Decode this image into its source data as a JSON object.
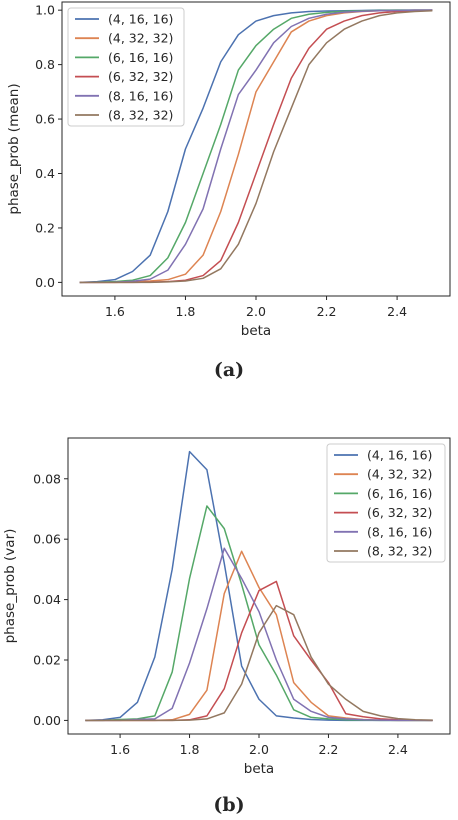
{
  "colors": [
    "#4c72b0",
    "#dd8452",
    "#55a868",
    "#c44e52",
    "#8172b2",
    "#937860"
  ],
  "chart_data": [
    {
      "type": "line",
      "caption": "(a)",
      "xlabel": "beta",
      "ylabel": "phase_prob (mean)",
      "xlim": [
        1.45,
        2.55
      ],
      "ylim": [
        -0.05,
        1.03
      ],
      "xticks": [
        1.6,
        1.8,
        2.0,
        2.2,
        2.4
      ],
      "xtick_labels": [
        "1.6",
        "1.8",
        "2.0",
        "2.2",
        "2.4"
      ],
      "yticks": [
        0.0,
        0.2,
        0.4,
        0.6,
        0.8,
        1.0
      ],
      "ytick_labels": [
        "0.0",
        "0.2",
        "0.4",
        "0.6",
        "0.8",
        "1.0"
      ],
      "legend": "top-left",
      "x": [
        1.5,
        1.55,
        1.6,
        1.65,
        1.7,
        1.75,
        1.8,
        1.85,
        1.9,
        1.95,
        2.0,
        2.05,
        2.1,
        2.15,
        2.2,
        2.25,
        2.3,
        2.35,
        2.4,
        2.45,
        2.5
      ],
      "series": [
        {
          "name": "(4, 16, 16)",
          "values": [
            0.0,
            0.003,
            0.01,
            0.04,
            0.1,
            0.26,
            0.49,
            0.64,
            0.81,
            0.91,
            0.96,
            0.98,
            0.99,
            0.995,
            0.997,
            0.998,
            0.999,
            1.0,
            1.0,
            1.0,
            1.0
          ]
        },
        {
          "name": "(4, 32, 32)",
          "values": [
            0.0,
            0.0,
            0.0,
            0.002,
            0.005,
            0.01,
            0.03,
            0.1,
            0.26,
            0.47,
            0.7,
            0.81,
            0.92,
            0.96,
            0.98,
            0.99,
            0.995,
            0.998,
            0.999,
            1.0,
            1.0
          ]
        },
        {
          "name": "(6, 16, 16)",
          "values": [
            0.0,
            0.001,
            0.003,
            0.008,
            0.025,
            0.09,
            0.22,
            0.4,
            0.58,
            0.78,
            0.87,
            0.93,
            0.97,
            0.985,
            0.992,
            0.996,
            0.998,
            0.999,
            1.0,
            1.0,
            1.0
          ]
        },
        {
          "name": "(6, 32, 32)",
          "values": [
            0.0,
            0.0,
            0.0,
            0.0,
            0.001,
            0.003,
            0.008,
            0.025,
            0.08,
            0.22,
            0.4,
            0.58,
            0.75,
            0.86,
            0.93,
            0.96,
            0.98,
            0.99,
            0.995,
            0.998,
            1.0
          ]
        },
        {
          "name": "(8, 16, 16)",
          "values": [
            0.0,
            0.0,
            0.001,
            0.004,
            0.012,
            0.045,
            0.14,
            0.27,
            0.49,
            0.69,
            0.78,
            0.88,
            0.94,
            0.97,
            0.985,
            0.993,
            0.996,
            0.998,
            0.999,
            1.0,
            1.0
          ]
        },
        {
          "name": "(8, 32, 32)",
          "values": [
            0.0,
            0.0,
            0.0,
            0.0,
            0.0,
            0.002,
            0.005,
            0.015,
            0.05,
            0.14,
            0.29,
            0.48,
            0.64,
            0.8,
            0.88,
            0.93,
            0.96,
            0.98,
            0.99,
            0.995,
            0.998
          ]
        }
      ]
    },
    {
      "type": "line",
      "caption": "(b)",
      "xlabel": "beta",
      "ylabel": "phase_prob (var)",
      "xlim": [
        1.45,
        2.55
      ],
      "ylim": [
        -0.0045,
        0.0935
      ],
      "xticks": [
        1.6,
        1.8,
        2.0,
        2.2,
        2.4
      ],
      "xtick_labels": [
        "1.6",
        "1.8",
        "2.0",
        "2.2",
        "2.4"
      ],
      "yticks": [
        0.0,
        0.02,
        0.04,
        0.06,
        0.08
      ],
      "ytick_labels": [
        "0.00",
        "0.02",
        "0.04",
        "0.06",
        "0.08"
      ],
      "legend": "top-right",
      "x": [
        1.5,
        1.55,
        1.6,
        1.65,
        1.7,
        1.75,
        1.8,
        1.85,
        1.9,
        1.95,
        2.0,
        2.05,
        2.1,
        2.15,
        2.2,
        2.25,
        2.3,
        2.35,
        2.4,
        2.45,
        2.5
      ],
      "series": [
        {
          "name": "(4, 16, 16)",
          "values": [
            0.0,
            0.0002,
            0.001,
            0.006,
            0.021,
            0.05,
            0.089,
            0.083,
            0.052,
            0.018,
            0.007,
            0.0015,
            0.0008,
            0.0003,
            0.0001,
            0.0,
            0.0,
            0.0,
            0.0,
            0.0,
            0.0
          ]
        },
        {
          "name": "(4, 32, 32)",
          "values": [
            0.0,
            0.0,
            0.0,
            0.0,
            0.0,
            0.0002,
            0.002,
            0.01,
            0.042,
            0.056,
            0.044,
            0.035,
            0.0125,
            0.006,
            0.0015,
            0.0008,
            0.0003,
            0.0001,
            0.0,
            0.0,
            0.0
          ]
        },
        {
          "name": "(6, 16, 16)",
          "values": [
            0.0,
            0.0,
            0.0003,
            0.0005,
            0.0015,
            0.016,
            0.047,
            0.071,
            0.0635,
            0.045,
            0.025,
            0.015,
            0.0035,
            0.001,
            0.0005,
            0.0002,
            0.0001,
            0.0,
            0.0,
            0.0,
            0.0
          ]
        },
        {
          "name": "(6, 32, 32)",
          "values": [
            0.0,
            0.0,
            0.0,
            0.0,
            0.0,
            0.0,
            0.0002,
            0.0015,
            0.0105,
            0.029,
            0.043,
            0.046,
            0.028,
            0.02,
            0.0125,
            0.0022,
            0.0012,
            0.0005,
            0.0002,
            0.0001,
            0.0
          ]
        },
        {
          "name": "(8, 16, 16)",
          "values": [
            0.0,
            0.0,
            0.0,
            0.0003,
            0.0005,
            0.004,
            0.019,
            0.037,
            0.057,
            0.047,
            0.036,
            0.02,
            0.007,
            0.003,
            0.001,
            0.0005,
            0.0002,
            0.0001,
            0.0,
            0.0,
            0.0
          ]
        },
        {
          "name": "(8, 32, 32)",
          "values": [
            0.0,
            0.0,
            0.0,
            0.0,
            0.0,
            0.0,
            0.0001,
            0.0005,
            0.0025,
            0.012,
            0.029,
            0.038,
            0.035,
            0.021,
            0.012,
            0.007,
            0.003,
            0.0015,
            0.0006,
            0.0002,
            0.0001
          ]
        }
      ]
    }
  ]
}
